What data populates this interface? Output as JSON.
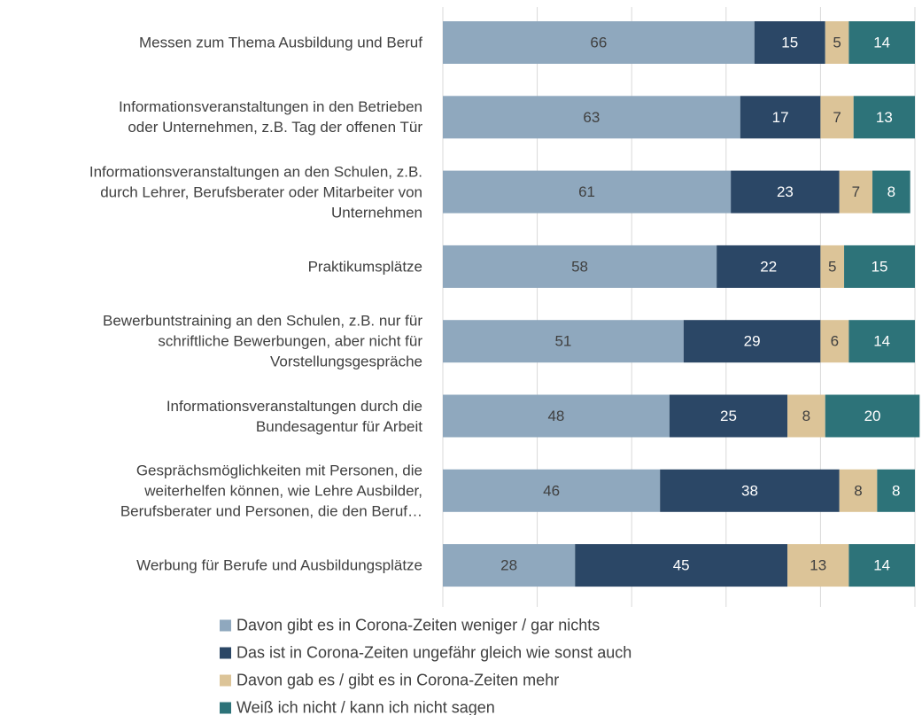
{
  "chart_data": {
    "type": "stacked-bar-horizontal",
    "categories": [
      "Messen zum Thema Ausbildung und Beruf",
      "Informationsveranstaltungen in den Betrieben\noder Unternehmen, z.B. Tag der offenen Tür",
      "Informationsveranstaltungen an den Schulen, z.B.\ndurch Lehrer, Berufsberater oder Mitarbeiter von\nUnternehmen",
      "Praktikumsplätze",
      "Bewerbuntstraining an den Schulen, z.B. nur für\nschriftliche Bewerbungen, aber nicht für\nVorstellungsgespräche",
      "Informationsveranstaltungen durch die\nBundesagentur für Arbeit",
      "Gesprächsmöglichkeiten mit Personen, die\nweiterhelfen können, wie Lehre Ausbilder,\nBerufsberater und Personen, die den Beruf…",
      "Werbung für Berufe und Ausbildungsplätze"
    ],
    "series": [
      {
        "name": "Davon gibt es in Corona-Zeiten weniger / gar nichts",
        "color": "#8fa8be",
        "values": [
          66,
          63,
          61,
          58,
          51,
          48,
          46,
          28
        ]
      },
      {
        "name": "Das ist in Corona-Zeiten ungefähr gleich wie sonst auch",
        "color": "#2b4766",
        "values": [
          15,
          17,
          23,
          22,
          29,
          25,
          38,
          45
        ]
      },
      {
        "name": "Davon gab es / gibt es in Corona-Zeiten mehr",
        "color": "#dcc498",
        "values": [
          5,
          7,
          7,
          5,
          6,
          8,
          8,
          13
        ]
      },
      {
        "name": "Weiß ich nicht / kann ich nicht sagen",
        "color": "#2d7379",
        "values": [
          14,
          13,
          8,
          15,
          14,
          20,
          8,
          14
        ]
      }
    ],
    "xlim": [
      0,
      100
    ],
    "xticks": [
      0,
      20,
      40,
      60,
      80,
      100
    ],
    "grid": true,
    "show_tick_labels": false,
    "legend": "bottom"
  }
}
